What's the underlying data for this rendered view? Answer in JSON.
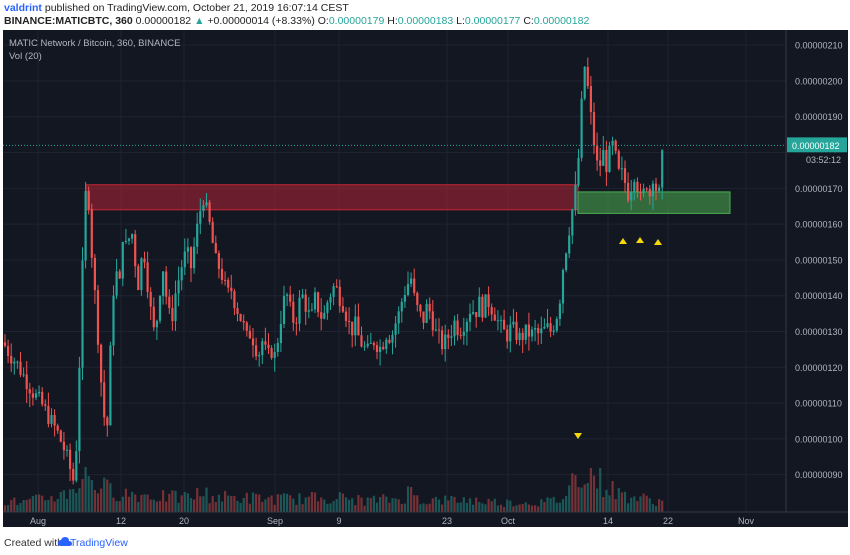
{
  "header": {
    "user": "valdrint",
    "published": " published on TradingView.com, October 21, 2019 16:07:14 CEST",
    "symbol": "BINANCE:MATICBTC, 360",
    "price": "0.00000182",
    "change": "+0.00000014 (+8.33%)",
    "o_label": "O:",
    "o_value": "0.00000179",
    "h_label": "H:",
    "h_value": "0.00000183",
    "l_label": "L:",
    "l_value": "0.00000177",
    "c_label": "C:",
    "c_value": "0.00000182"
  },
  "footer": {
    "created_with": "Created with",
    "brand": "TradingView"
  },
  "chart_data": {
    "type": "candlestick",
    "title": "MATIC Network / Bitcoin, 360, BINANCE",
    "volume_label": "Vol (20)",
    "x_tick_labels": [
      "Aug",
      "12",
      "20",
      "Sep",
      "9",
      "23",
      "Oct",
      "14",
      "22",
      "Nov"
    ],
    "y_tick_labels": [
      "0.00000210",
      "0.00000200",
      "0.00000190",
      "0.00000180",
      "0.00000170",
      "0.00000160",
      "0.00000150",
      "0.00000140",
      "0.00000130",
      "0.00000120",
      "0.00000110",
      "0.00000100",
      "0.00000090"
    ],
    "ylim": [
      8.4e-07,
      2.15e-06
    ],
    "last_price_label": "0.00000182",
    "countdown_label": "03:52:12",
    "last_price": 1.82e-06,
    "resistance_zone": {
      "from": 1.64e-06,
      "to": 1.71e-06
    },
    "support_zone": {
      "from": 1.63e-06,
      "to": 1.69e-06
    },
    "price_path": [
      [
        0,
        127
      ],
      [
        6,
        124
      ],
      [
        14,
        121
      ],
      [
        22,
        117
      ],
      [
        30,
        113
      ],
      [
        38,
        110
      ],
      [
        46,
        106
      ],
      [
        54,
        102
      ],
      [
        60,
        98
      ],
      [
        66,
        93
      ],
      [
        70,
        88
      ],
      [
        74,
        100
      ],
      [
        78,
        135
      ],
      [
        81,
        160
      ],
      [
        84,
        175
      ],
      [
        86,
        165
      ],
      [
        88,
        155
      ],
      [
        92,
        140
      ],
      [
        96,
        125
      ],
      [
        100,
        108
      ],
      [
        104,
        102
      ],
      [
        108,
        128
      ],
      [
        112,
        150
      ],
      [
        116,
        140
      ],
      [
        120,
        158
      ],
      [
        124,
        152
      ],
      [
        128,
        160
      ],
      [
        132,
        150
      ],
      [
        136,
        142
      ],
      [
        140,
        155
      ],
      [
        144,
        145
      ],
      [
        148,
        135
      ],
      [
        152,
        128
      ],
      [
        156,
        140
      ],
      [
        160,
        148
      ],
      [
        164,
        138
      ],
      [
        168,
        132
      ],
      [
        172,
        140
      ],
      [
        176,
        145
      ],
      [
        180,
        150
      ],
      [
        184,
        152
      ],
      [
        188,
        148
      ],
      [
        192,
        155
      ],
      [
        196,
        162
      ],
      [
        200,
        168
      ],
      [
        204,
        163
      ],
      [
        208,
        158
      ],
      [
        212,
        150
      ],
      [
        216,
        148
      ],
      [
        220,
        145
      ],
      [
        224,
        140
      ],
      [
        228,
        142
      ],
      [
        232,
        138
      ],
      [
        236,
        135
      ],
      [
        240,
        132
      ],
      [
        244,
        128
      ],
      [
        248,
        130
      ],
      [
        252,
        126
      ],
      [
        256,
        124
      ],
      [
        260,
        128
      ],
      [
        264,
        122
      ],
      [
        268,
        125
      ],
      [
        272,
        123
      ],
      [
        276,
        130
      ],
      [
        280,
        138
      ],
      [
        284,
        140
      ],
      [
        288,
        135
      ],
      [
        292,
        132
      ],
      [
        296,
        138
      ],
      [
        300,
        140
      ],
      [
        304,
        136
      ],
      [
        308,
        133
      ],
      [
        312,
        139
      ],
      [
        316,
        136
      ],
      [
        320,
        133
      ],
      [
        324,
        138
      ],
      [
        328,
        141
      ],
      [
        332,
        143
      ],
      [
        336,
        140
      ],
      [
        340,
        138
      ],
      [
        344,
        134
      ],
      [
        348,
        130
      ],
      [
        352,
        132
      ],
      [
        356,
        128
      ],
      [
        360,
        126
      ],
      [
        364,
        124
      ],
      [
        368,
        126
      ],
      [
        372,
        128
      ],
      [
        376,
        125
      ],
      [
        380,
        127
      ],
      [
        384,
        130
      ],
      [
        388,
        128
      ],
      [
        392,
        132
      ],
      [
        396,
        135
      ],
      [
        400,
        140
      ],
      [
        404,
        143
      ],
      [
        408,
        145
      ],
      [
        412,
        138
      ],
      [
        416,
        135
      ],
      [
        420,
        133
      ],
      [
        424,
        137
      ],
      [
        428,
        135
      ],
      [
        432,
        130
      ],
      [
        436,
        128
      ],
      [
        440,
        126
      ],
      [
        444,
        128
      ],
      [
        448,
        130
      ],
      [
        452,
        133
      ],
      [
        456,
        130
      ],
      [
        460,
        132
      ],
      [
        464,
        134
      ],
      [
        468,
        137
      ],
      [
        472,
        135
      ],
      [
        476,
        138
      ],
      [
        480,
        136
      ],
      [
        484,
        139
      ],
      [
        488,
        137
      ],
      [
        492,
        135
      ],
      [
        496,
        132
      ],
      [
        500,
        130
      ],
      [
        504,
        129
      ],
      [
        508,
        131
      ],
      [
        512,
        130
      ],
      [
        516,
        128
      ],
      [
        520,
        129
      ],
      [
        524,
        130
      ],
      [
        528,
        129
      ],
      [
        532,
        130
      ],
      [
        536,
        129
      ],
      [
        540,
        130
      ],
      [
        544,
        131
      ],
      [
        548,
        130
      ],
      [
        552,
        133
      ],
      [
        556,
        137
      ],
      [
        560,
        148
      ],
      [
        564,
        155
      ],
      [
        568,
        162
      ],
      [
        572,
        168
      ],
      [
        576,
        180
      ],
      [
        579,
        195
      ],
      [
        582,
        205
      ],
      [
        584,
        200
      ],
      [
        587,
        192
      ],
      [
        590,
        185
      ],
      [
        593,
        178
      ],
      [
        596,
        174
      ],
      [
        599,
        181
      ],
      [
        602,
        178
      ],
      [
        605,
        175
      ],
      [
        608,
        184
      ],
      [
        611,
        180
      ],
      [
        614,
        177
      ],
      [
        617,
        172
      ],
      [
        620,
        175
      ],
      [
        623,
        170
      ],
      [
        626,
        168
      ],
      [
        629,
        172
      ],
      [
        632,
        175
      ],
      [
        635,
        170
      ],
      [
        638,
        166
      ],
      [
        641,
        169
      ],
      [
        644,
        172
      ],
      [
        647,
        168
      ],
      [
        650,
        174
      ],
      [
        653,
        170
      ],
      [
        656,
        168
      ],
      [
        659,
        178
      ],
      [
        662,
        182
      ]
    ],
    "volume_path": [
      [
        0,
        12
      ],
      [
        20,
        10
      ],
      [
        40,
        14
      ],
      [
        60,
        18
      ],
      [
        70,
        26
      ],
      [
        80,
        34
      ],
      [
        86,
        42
      ],
      [
        92,
        30
      ],
      [
        100,
        26
      ],
      [
        110,
        22
      ],
      [
        120,
        20
      ],
      [
        140,
        18
      ],
      [
        160,
        16
      ],
      [
        180,
        15
      ],
      [
        200,
        20
      ],
      [
        210,
        16
      ],
      [
        240,
        15
      ],
      [
        270,
        14
      ],
      [
        300,
        14
      ],
      [
        330,
        16
      ],
      [
        360,
        12
      ],
      [
        400,
        14
      ],
      [
        406,
        22
      ],
      [
        420,
        12
      ],
      [
        460,
        13
      ],
      [
        500,
        10
      ],
      [
        540,
        10
      ],
      [
        560,
        14
      ],
      [
        572,
        38
      ],
      [
        580,
        46
      ],
      [
        588,
        40
      ],
      [
        596,
        34
      ],
      [
        604,
        26
      ],
      [
        620,
        18
      ],
      [
        640,
        14
      ],
      [
        662,
        10
      ]
    ]
  }
}
